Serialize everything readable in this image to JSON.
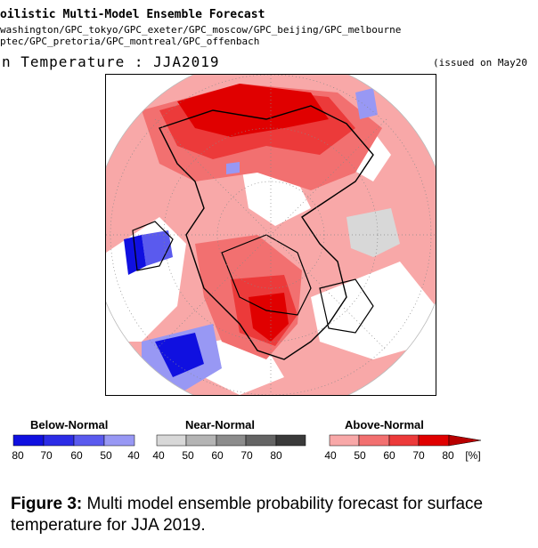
{
  "header": {
    "title": "oilistic Multi-Model Ensemble Forecast",
    "centers_line1": "washington/GPC_tokyo/GPC_exeter/GPC_moscow/GPC_beijing/GPC_melbourne",
    "centers_line2": "ptec/GPC_pretoria/GPC_montreal/GPC_offenbach",
    "map_title": "n Temperature : JJA2019",
    "issued": "(issued on May20"
  },
  "legend": {
    "groups": [
      {
        "label": "Below-Normal",
        "colors": [
          "#1010e0",
          "#2c2ce6",
          "#5a5aee",
          "#9898f4"
        ],
        "ticks": [
          "80",
          "70",
          "60",
          "50",
          "40"
        ]
      },
      {
        "label": "Near-Normal",
        "colors": [
          "#d8d8d8",
          "#b4b4b4",
          "#8c8c8c",
          "#646464",
          "#3a3a3a"
        ],
        "ticks": [
          "40",
          "50",
          "60",
          "70",
          "80"
        ]
      },
      {
        "label": "Above-Normal",
        "colors": [
          "#f8a8a8",
          "#f27070",
          "#ec3a3a",
          "#e00000",
          "#b80000"
        ],
        "ticks": [
          "40",
          "50",
          "60",
          "70",
          "80",
          "[%]"
        ]
      }
    ]
  },
  "caption": {
    "bold": "Figure 3:",
    "text": " Multi model ensemble probability forecast for surface temperature for JJA 2019."
  }
}
